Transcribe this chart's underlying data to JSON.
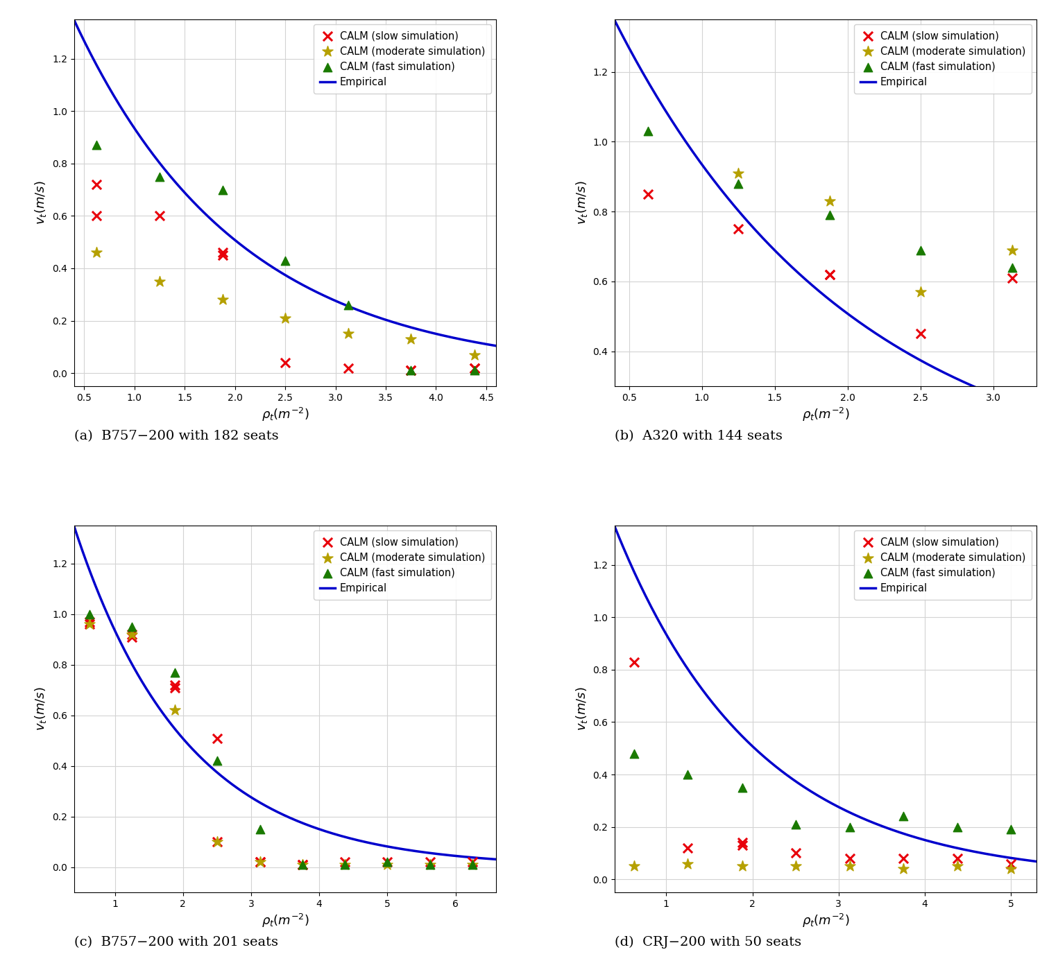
{
  "subplots": [
    {
      "label": "(a)",
      "title": "B757−200 with 182 seats",
      "xlim": [
        0.4,
        4.6
      ],
      "ylim": [
        -0.05,
        1.35
      ],
      "xticks": [
        0.5,
        1.0,
        1.5,
        2.0,
        2.5,
        3.0,
        3.5,
        4.0,
        4.5
      ],
      "yticks": [
        0.0,
        0.2,
        0.4,
        0.6,
        0.8,
        1.0,
        1.2
      ],
      "empirical": {
        "a": 1.72,
        "b": 0.61,
        "xmin": 0.4,
        "xmax": 4.6
      },
      "slow": [
        [
          0.62,
          0.72
        ],
        [
          0.62,
          0.6
        ],
        [
          1.25,
          0.6
        ],
        [
          1.88,
          0.46
        ],
        [
          1.88,
          0.45
        ],
        [
          2.5,
          0.04
        ],
        [
          3.13,
          0.02
        ],
        [
          3.75,
          0.01
        ],
        [
          3.75,
          0.01
        ],
        [
          4.38,
          0.02
        ],
        [
          4.38,
          0.02
        ]
      ],
      "moderate": [
        [
          0.62,
          0.46
        ],
        [
          1.25,
          0.35
        ],
        [
          1.88,
          0.28
        ],
        [
          2.5,
          0.21
        ],
        [
          3.13,
          0.15
        ],
        [
          3.75,
          0.13
        ],
        [
          4.38,
          0.07
        ]
      ],
      "fast": [
        [
          0.62,
          0.87
        ],
        [
          1.25,
          0.75
        ],
        [
          1.88,
          0.7
        ],
        [
          2.5,
          0.43
        ],
        [
          3.13,
          0.26
        ],
        [
          3.75,
          0.01
        ],
        [
          4.38,
          0.01
        ]
      ]
    },
    {
      "label": "(b)",
      "title": "A320 with 144 seats",
      "xlim": [
        0.4,
        3.3
      ],
      "ylim": [
        0.3,
        1.35
      ],
      "xticks": [
        0.5,
        1.0,
        1.5,
        2.0,
        2.5,
        3.0
      ],
      "yticks": [
        0.4,
        0.6,
        0.8,
        1.0,
        1.2
      ],
      "empirical": {
        "a": 1.72,
        "b": 0.61,
        "xmin": 0.4,
        "xmax": 3.3
      },
      "slow": [
        [
          0.63,
          0.85
        ],
        [
          1.25,
          0.75
        ],
        [
          1.88,
          0.62
        ],
        [
          1.88,
          0.62
        ],
        [
          2.5,
          0.45
        ],
        [
          3.13,
          0.61
        ]
      ],
      "moderate": [
        [
          1.25,
          0.91
        ],
        [
          1.88,
          0.83
        ],
        [
          2.5,
          0.57
        ],
        [
          3.13,
          0.69
        ]
      ],
      "fast": [
        [
          0.63,
          1.03
        ],
        [
          1.25,
          0.88
        ],
        [
          1.88,
          0.79
        ],
        [
          2.5,
          0.69
        ],
        [
          3.13,
          0.64
        ]
      ]
    },
    {
      "label": "(c)",
      "title": "B757−200 with 201 seats",
      "xlim": [
        0.4,
        6.6
      ],
      "ylim": [
        -0.1,
        1.35
      ],
      "xticks": [
        1,
        2,
        3,
        4,
        5,
        6
      ],
      "yticks": [
        0.0,
        0.2,
        0.4,
        0.6,
        0.8,
        1.0,
        1.2
      ],
      "empirical": {
        "a": 1.72,
        "b": 0.61,
        "xmin": 0.4,
        "xmax": 6.6
      },
      "slow": [
        [
          0.63,
          0.97
        ],
        [
          0.63,
          0.96
        ],
        [
          1.25,
          0.92
        ],
        [
          1.25,
          0.91
        ],
        [
          1.88,
          0.72
        ],
        [
          1.88,
          0.71
        ],
        [
          2.5,
          0.51
        ],
        [
          2.5,
          0.1
        ],
        [
          3.13,
          0.02
        ],
        [
          3.13,
          0.02
        ],
        [
          3.75,
          0.01
        ],
        [
          3.75,
          0.01
        ],
        [
          4.38,
          0.02
        ],
        [
          5.0,
          0.02
        ],
        [
          5.63,
          0.02
        ],
        [
          6.25,
          0.02
        ]
      ],
      "moderate": [
        [
          0.63,
          0.96
        ],
        [
          1.25,
          0.92
        ],
        [
          1.88,
          0.62
        ],
        [
          2.5,
          0.1
        ],
        [
          3.13,
          0.02
        ],
        [
          3.75,
          0.01
        ],
        [
          4.38,
          0.01
        ],
        [
          5.0,
          0.01
        ],
        [
          5.63,
          0.01
        ],
        [
          6.25,
          0.01
        ]
      ],
      "fast": [
        [
          0.63,
          1.0
        ],
        [
          1.25,
          0.95
        ],
        [
          1.88,
          0.77
        ],
        [
          2.5,
          0.42
        ],
        [
          3.13,
          0.15
        ],
        [
          3.75,
          0.01
        ],
        [
          4.38,
          0.01
        ],
        [
          5.0,
          0.02
        ],
        [
          5.63,
          0.01
        ],
        [
          6.25,
          0.01
        ]
      ]
    },
    {
      "label": "(d)",
      "title": "CRJ−200 with 50 seats",
      "xlim": [
        0.4,
        5.3
      ],
      "ylim": [
        -0.05,
        1.35
      ],
      "xticks": [
        1,
        2,
        3,
        4,
        5
      ],
      "yticks": [
        0.0,
        0.2,
        0.4,
        0.6,
        0.8,
        1.0,
        1.2
      ],
      "empirical": {
        "a": 1.72,
        "b": 0.61,
        "xmin": 0.4,
        "xmax": 5.3
      },
      "slow": [
        [
          0.63,
          0.83
        ],
        [
          1.25,
          0.12
        ],
        [
          1.88,
          0.14
        ],
        [
          1.88,
          0.13
        ],
        [
          2.5,
          0.1
        ],
        [
          3.13,
          0.08
        ],
        [
          3.75,
          0.08
        ],
        [
          4.38,
          0.08
        ],
        [
          5.0,
          0.06
        ]
      ],
      "moderate": [
        [
          0.63,
          0.05
        ],
        [
          1.25,
          0.06
        ],
        [
          1.88,
          0.05
        ],
        [
          2.5,
          0.05
        ],
        [
          3.13,
          0.05
        ],
        [
          3.75,
          0.04
        ],
        [
          4.38,
          0.05
        ],
        [
          5.0,
          0.04
        ]
      ],
      "fast": [
        [
          0.63,
          0.48
        ],
        [
          1.25,
          0.4
        ],
        [
          1.88,
          0.35
        ],
        [
          2.5,
          0.21
        ],
        [
          3.13,
          0.2
        ],
        [
          3.75,
          0.24
        ],
        [
          4.38,
          0.2
        ],
        [
          5.0,
          0.19
        ]
      ]
    }
  ],
  "colors": {
    "slow": "#e8000b",
    "moderate": "#b5a000",
    "fast": "#1a7a00",
    "empirical": "#0000cc"
  },
  "legend_labels": {
    "slow": "CALM (slow simulation)",
    "moderate": "CALM (moderate simulation)",
    "fast": "CALM (fast simulation)",
    "empirical": "Empirical"
  }
}
